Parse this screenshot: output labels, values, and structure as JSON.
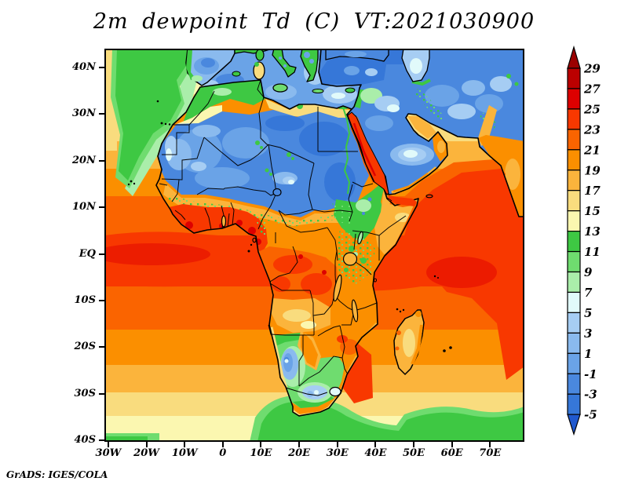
{
  "title": "2m dewpoint Td (C) VT:2021030900",
  "attribution": "GrADS: IGES/COLA",
  "axes": {
    "y_ticks": [
      "40N",
      "30N",
      "20N",
      "10N",
      "EQ",
      "10S",
      "20S",
      "30S",
      "40S"
    ],
    "x_ticks": [
      "30W",
      "20W",
      "10W",
      "0",
      "10E",
      "20E",
      "30E",
      "40E",
      "50E",
      "60E",
      "70E"
    ]
  },
  "colorbar": {
    "labels_top_to_bottom": [
      "29",
      "27",
      "25",
      "23",
      "21",
      "19",
      "17",
      "15",
      "13",
      "11",
      "9",
      "7",
      "5",
      "3",
      "1",
      "-1",
      "-3",
      "-5"
    ],
    "segment_colors_top_to_bottom": [
      "#bb0000",
      "#dd0000",
      "#f83800",
      "#fa6400",
      "#fb8f00",
      "#fbb43c",
      "#f9dc7e",
      "#fbf7b0",
      "#3ec843",
      "#6fdc6f",
      "#aaeeaa",
      "#e1fafa",
      "#a6cdf3",
      "#8abaee",
      "#6aa3e7",
      "#4a88de",
      "#3677d8"
    ],
    "arrow_top_color": "#9b0000",
    "arrow_bottom_color": "#2059ce"
  },
  "chart_data": {
    "type": "heatmap",
    "title": "2m dewpoint Td (C) VT:2021030900",
    "variable": "2-meter dewpoint temperature",
    "units": "C",
    "valid_time_label": "VT:2021030900",
    "x_axis": {
      "label": "longitude",
      "tick_labels": [
        "30W",
        "20W",
        "10W",
        "0",
        "10E",
        "20E",
        "30E",
        "40E",
        "50E",
        "60E",
        "70E"
      ],
      "approx_range": [
        "31W",
        "79E"
      ]
    },
    "y_axis": {
      "label": "latitude",
      "tick_labels": [
        "40N",
        "30N",
        "20N",
        "10N",
        "EQ",
        "10S",
        "20S",
        "30S",
        "40S"
      ],
      "approx_range": [
        "40S",
        "44N"
      ]
    },
    "levels_c": [
      -5,
      -3,
      -1,
      1,
      3,
      5,
      7,
      9,
      11,
      13,
      15,
      17,
      19,
      21,
      23,
      25,
      27,
      29
    ],
    "palette_low_to_high": [
      "#2059ce",
      "#3677d8",
      "#4a88de",
      "#6aa3e7",
      "#8abaee",
      "#a6cdf3",
      "#e1fafa",
      "#aaeeaa",
      "#6fdc6f",
      "#3ec843",
      "#fbf7b0",
      "#f9dc7e",
      "#fbb43c",
      "#fb8f00",
      "#fa6400",
      "#f83800",
      "#dd0000",
      "#bb0000",
      "#9b0000"
    ],
    "grid": false,
    "legend_position": "right vertical colorbar with end arrows",
    "features": [
      {
        "region": "Sahara Desert, Egypt, Sudan interior",
        "dewpoint_c": "-5 to 7 (deep blue, very dry)"
      },
      {
        "region": "Arabian Peninsula interior, Anatolia, Iran",
        "dewpoint_c": "-3 to 7 (blue)"
      },
      {
        "region": "Mediterranean Sea and southern Europe",
        "dewpoint_c": "1 to 11 (blue-green mix)"
      },
      {
        "region": "Maghreb coast, Ethiopia highlands, NE Atlantic patch",
        "dewpoint_c": "9 to 13 (green)"
      },
      {
        "region": "Sahel transition band ~12-15N",
        "dewpoint_c": "13 to 19 (tan/orange speckled green)"
      },
      {
        "region": "Guinea coast, Congo basin, Red Sea, tropical oceans",
        "dewpoint_c": "21 to 27 (red/orange)"
      },
      {
        "region": "Arabian Sea and Indian Ocean",
        "dewpoint_c": "23 to 27 (red)"
      },
      {
        "region": "Angola plateau, Madagascar, subtropical oceans",
        "dewpoint_c": "17 to 21 (orange/tan)"
      },
      {
        "region": "South Africa / Namibia interior",
        "dewpoint_c": "1 to 11 (blue-green)"
      },
      {
        "region": "Southern Ocean band ~40S",
        "dewpoint_c": "11 to 13 (green strip)"
      }
    ]
  }
}
